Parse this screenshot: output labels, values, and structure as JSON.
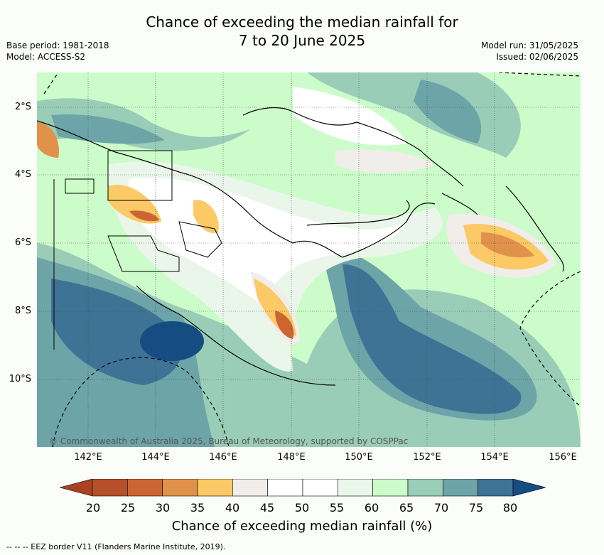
{
  "title_line1": "Chance of exceeding the median rainfall for",
  "title_line2": "7 to 20 June 2025",
  "base_period": "Base period: 1981-2018",
  "model": "Model: ACCESS-S2",
  "model_run": "Model run: 31/05/2025",
  "issued": "Issued: 02/06/2025",
  "latitude_labels": [
    "2°S",
    "4°S",
    "6°S",
    "8°S",
    "10°S"
  ],
  "longitude_labels": [
    "142°E",
    "144°E",
    "146°E",
    "148°E",
    "150°E",
    "152°E",
    "154°E",
    "156°E"
  ],
  "copyright": "© Commonwealth of Australia 2025, Bureau of Meteorology, supported by COSPPac",
  "colorbar": {
    "ticks": [
      "20",
      "25",
      "30",
      "35",
      "40",
      "45",
      "50",
      "55",
      "60",
      "65",
      "70",
      "75",
      "80"
    ],
    "colors": [
      "#a9431f",
      "#b5502a",
      "#cd6532",
      "#e1924a",
      "#fbc965",
      "#f0edea",
      "#ffffff",
      "#ffffff",
      "#ebf6eb",
      "#ccfcc9",
      "#9acdb8",
      "#6da4a8",
      "#3f7395",
      "#154d82"
    ],
    "label": "Chance of exceeding median rainfall (%)"
  },
  "eez_legend": "--  --  -- EEZ border V11 (Flanders Marine Institute, 2019)."
}
